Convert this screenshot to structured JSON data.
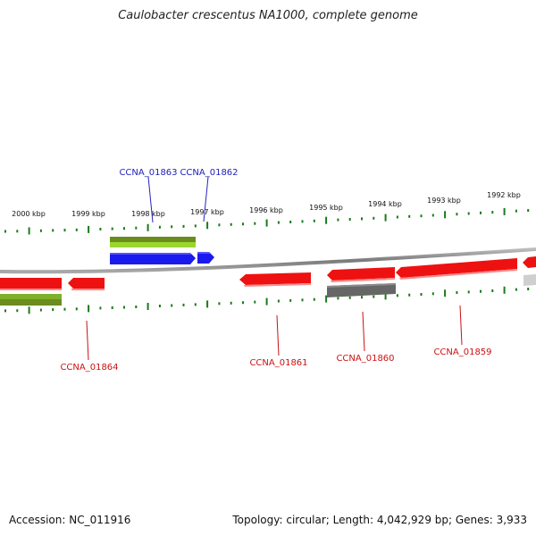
{
  "title": "Caulobacter crescentus NA1000, complete genome",
  "footer": {
    "accession": "Accession: NC_011916",
    "summary": "Topology: circular; Length: 4,042,929 bp; Genes: 3,933"
  },
  "colors": {
    "tick": "#1a7a1a",
    "backbone": "#8c8c8c",
    "forward_label": "#2222bb",
    "reverse_label": "#cc1111",
    "gene_red": "#ee1111",
    "gene_blue": "#1a1aee",
    "gene_green": "#7fc21e",
    "gene_olive": "#6b8c1e",
    "gene_gray": "#666666"
  },
  "scale": {
    "unit": "kbp",
    "labels": [
      "2000 kbp",
      "1999 kbp",
      "1998 kbp",
      "1997 kbp",
      "1996 kbp",
      "1995 kbp",
      "1994 kbp",
      "1993 kbp",
      "1992 kbp"
    ]
  },
  "gene_labels": {
    "top": [
      "CCNA_01863",
      "CCNA_01862"
    ],
    "bottom": [
      "CCNA_01864",
      "CCNA_01861",
      "CCNA_01860",
      "CCNA_01859"
    ]
  }
}
